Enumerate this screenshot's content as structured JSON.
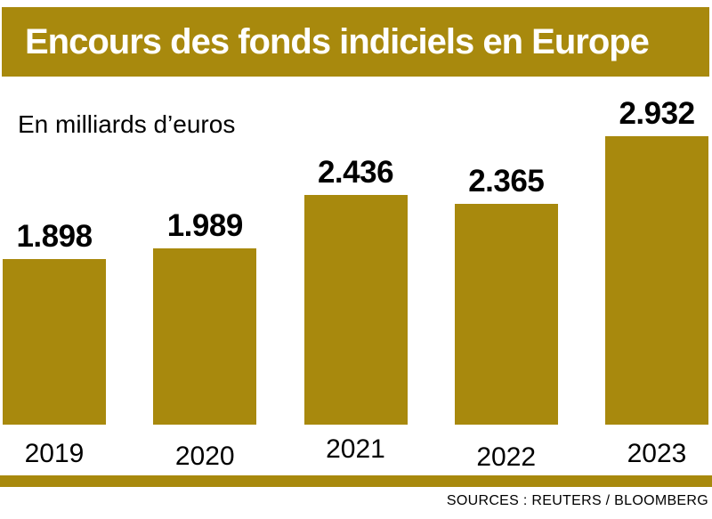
{
  "page": {
    "title": "Encours des fonds indiciels en Europe",
    "subtitle": "En milliards d’euros",
    "source": "SOURCES : REUTERS / BLOOMBERG"
  },
  "colors": {
    "gold": "#A8890D",
    "title_text": "#FFFFFF",
    "label_text": "#000000",
    "background": "#FFFFFF"
  },
  "chart_data": {
    "type": "bar",
    "title": "Encours des fonds indiciels en Europe",
    "subtitle": "En milliards d’euros",
    "xlabel": "",
    "ylabel": "En milliards d’euros",
    "categories": [
      "2019",
      "2020",
      "2021",
      "2022",
      "2023"
    ],
    "values": [
      1.898,
      1.989,
      2.436,
      2.365,
      2.932
    ],
    "value_labels": [
      "1.898",
      "1.989",
      "2.436",
      "2.365",
      "2.932"
    ],
    "ylim": [
      0.5,
      3.0
    ],
    "grid": false,
    "legend": "none",
    "bar_color": "#A8890D",
    "source": "SOURCES : REUTERS / BLOOMBERG"
  }
}
